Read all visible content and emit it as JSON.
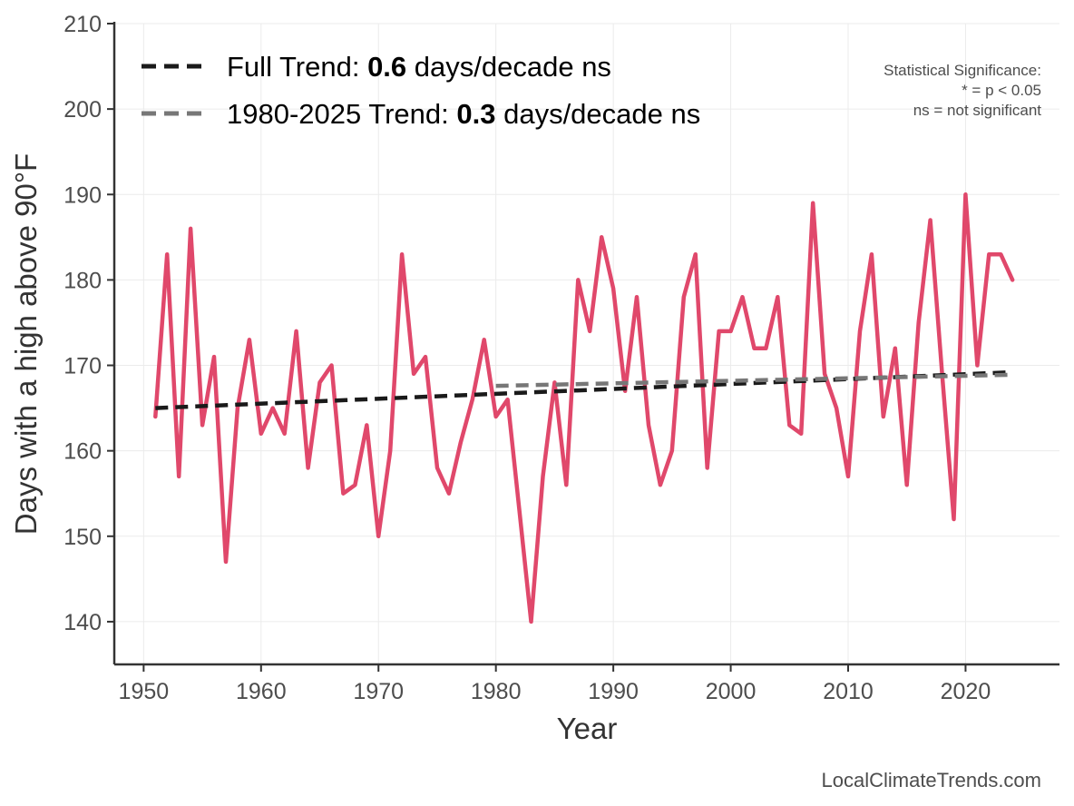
{
  "chart_data": {
    "type": "line",
    "xlabel": "Year",
    "ylabel": "Days with a high above 90°F",
    "xlim": [
      1947.5,
      2028
    ],
    "ylim": [
      135,
      210
    ],
    "xticks": [
      1950,
      1960,
      1970,
      1980,
      1990,
      2000,
      2010,
      2020
    ],
    "yticks": [
      140,
      150,
      160,
      170,
      180,
      190,
      200,
      210
    ],
    "grid": true,
    "series": [
      {
        "name": "",
        "color": "#e0486b",
        "x": [
          1951,
          1952,
          1953,
          1954,
          1955,
          1956,
          1957,
          1958,
          1959,
          1960,
          1961,
          1962,
          1963,
          1964,
          1965,
          1966,
          1967,
          1968,
          1969,
          1970,
          1971,
          1972,
          1973,
          1974,
          1975,
          1976,
          1977,
          1978,
          1979,
          1980,
          1981,
          1982,
          1983,
          1984,
          1985,
          1986,
          1987,
          1988,
          1989,
          1990,
          1991,
          1992,
          1993,
          1994,
          1995,
          1996,
          1997,
          1998,
          1999,
          2000,
          2001,
          2002,
          2003,
          2004,
          2005,
          2006,
          2007,
          2008,
          2009,
          2010,
          2011,
          2012,
          2013,
          2014,
          2015,
          2016,
          2017,
          2018,
          2019,
          2020,
          2021,
          2022,
          2023,
          2024
        ],
        "y": [
          164,
          183,
          157,
          186,
          163,
          171,
          147,
          165,
          173,
          162,
          165,
          162,
          174,
          158,
          168,
          170,
          155,
          156,
          163,
          150,
          160,
          183,
          169,
          171,
          158,
          155,
          161,
          166,
          173,
          164,
          166,
          153,
          140,
          157,
          168,
          156,
          180,
          174,
          185,
          179,
          167,
          178,
          163,
          156,
          160,
          178,
          183,
          158,
          174,
          174,
          178,
          172,
          172,
          178,
          163,
          162,
          189,
          169,
          165,
          157,
          174,
          183,
          164,
          172,
          156,
          175,
          187,
          169,
          152,
          190,
          170,
          183,
          183,
          180
        ]
      }
    ],
    "trend_lines": [
      {
        "name": "Full Trend",
        "color": "#1a1a1a",
        "x": [
          1951,
          2024
        ],
        "y": [
          165.0,
          169.2
        ]
      },
      {
        "name": "1980-2025 Trend",
        "color": "#777777",
        "x": [
          1980,
          2024
        ],
        "y": [
          167.6,
          168.9
        ]
      }
    ],
    "legend": {
      "placement": "top-left",
      "entries": [
        {
          "prefix": "Full Trend: ",
          "value": "0.6",
          "suffix": " days/decade ns",
          "color": "#1a1a1a"
        },
        {
          "prefix": "1980-2025 Trend: ",
          "value": "0.3",
          "suffix": " days/decade ns",
          "color": "#777777"
        }
      ]
    },
    "significance_note": [
      "Statistical Significance:",
      "* = p < 0.05",
      "ns = not significant"
    ],
    "credit": "LocalClimateTrends.com"
  }
}
